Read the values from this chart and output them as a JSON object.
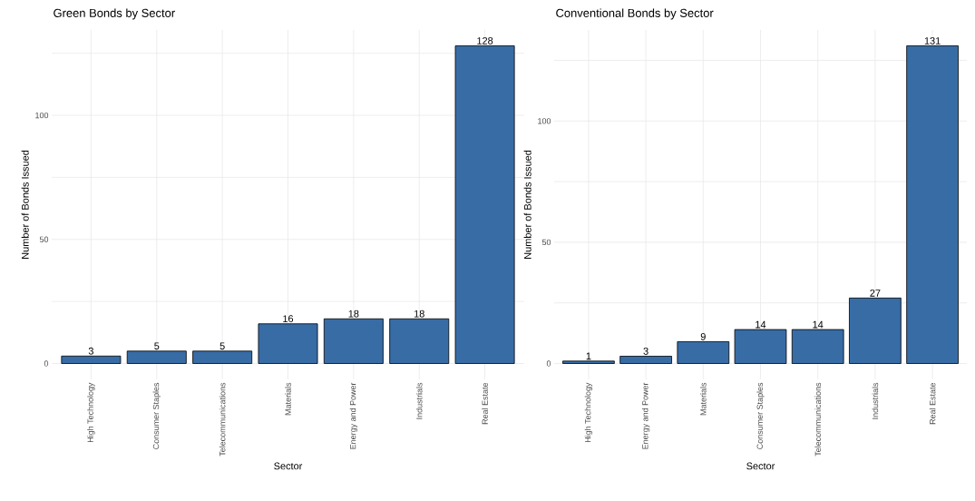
{
  "chart_data": [
    {
      "type": "bar",
      "title": "Green Bonds by Sector",
      "xlabel": "Sector",
      "ylabel": "Number of Bonds Issued",
      "categories": [
        "High Technology",
        "Consumer Staples",
        "Telecommunications",
        "Materials",
        "Energy and Power",
        "Industrials",
        "Real Estate"
      ],
      "values": [
        3,
        5,
        5,
        16,
        18,
        18,
        128
      ],
      "color": "#386ca5",
      "ylim": [
        -6.4,
        134.4
      ],
      "yticks": [
        0,
        {
          "value": 25,
          "label": null
        },
        50,
        {
          "value": 75,
          "label": null
        },
        100,
        {
          "value": 125,
          "label": null
        }
      ],
      "grid": true,
      "data_labels": true
    },
    {
      "type": "bar",
      "title": "Conventional Bonds by Sector",
      "xlabel": "Sector",
      "ylabel": "Number of Bonds Issued",
      "categories": [
        "High Technology",
        "Energy and Power",
        "Materials",
        "Consumer Staples",
        "Telecommunications",
        "Industrials",
        "Real Estate"
      ],
      "values": [
        1,
        3,
        9,
        14,
        14,
        27,
        131
      ],
      "color": "#386ca5",
      "ylim": [
        -6.55,
        137.55
      ],
      "yticks": [
        0,
        {
          "value": 25,
          "label": null
        },
        50,
        {
          "value": 75,
          "label": null
        },
        100,
        {
          "value": 125,
          "label": null
        }
      ],
      "grid": true,
      "data_labels": true
    }
  ]
}
